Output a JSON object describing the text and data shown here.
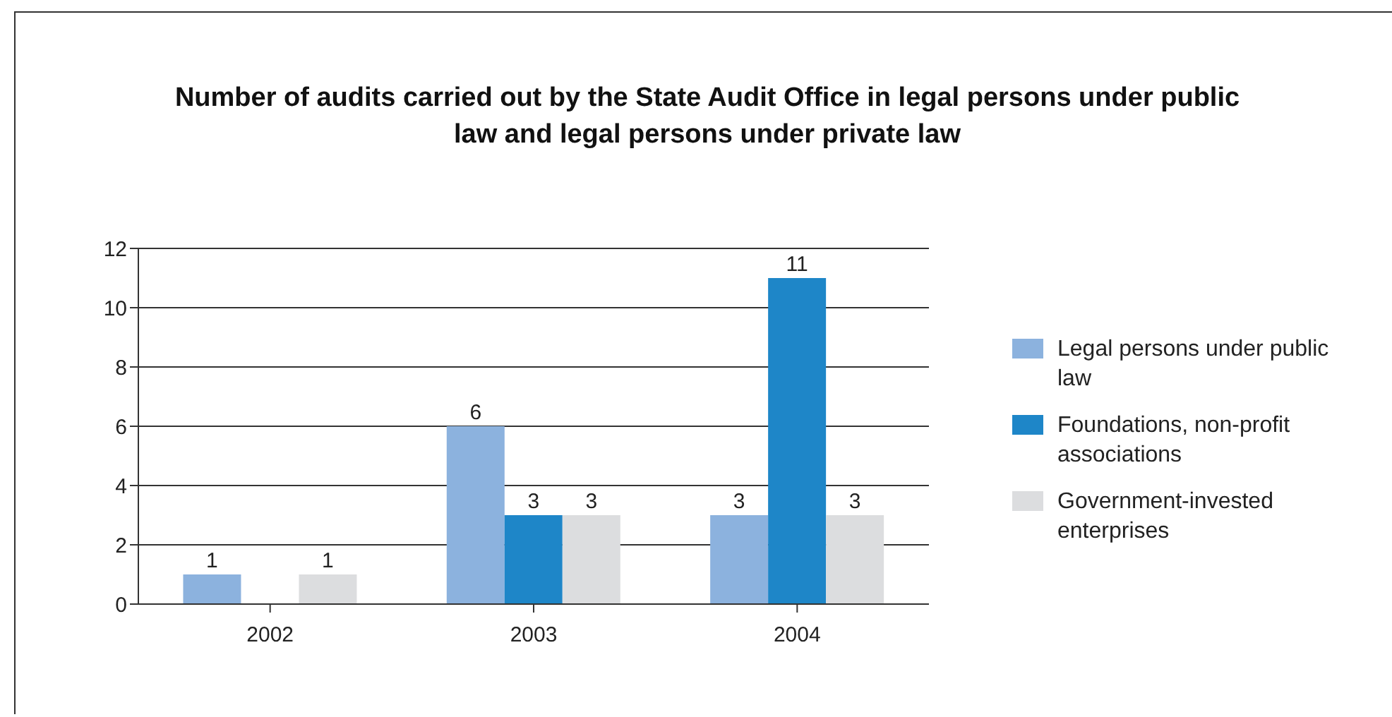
{
  "chart_data": {
    "type": "bar",
    "title": "Number of audits carried out by the State Audit Office in legal persons under public law and legal persons under private law",
    "categories": [
      "2002",
      "2003",
      "2004"
    ],
    "series": [
      {
        "name": "Legal persons under public law",
        "color": "#8cb2de",
        "values": [
          1,
          6,
          3
        ]
      },
      {
        "name": "Foundations, non-profit associations",
        "color": "#1e86c8",
        "values": [
          null,
          3,
          11
        ]
      },
      {
        "name": "Government-invested enterprises",
        "color": "#dcdddf",
        "values": [
          1,
          3,
          3
        ]
      }
    ],
    "ylim": [
      0,
      12
    ],
    "yticks": [
      0,
      2,
      4,
      6,
      8,
      10,
      12
    ],
    "grid": "y",
    "legend": "right",
    "data_labels": true
  }
}
